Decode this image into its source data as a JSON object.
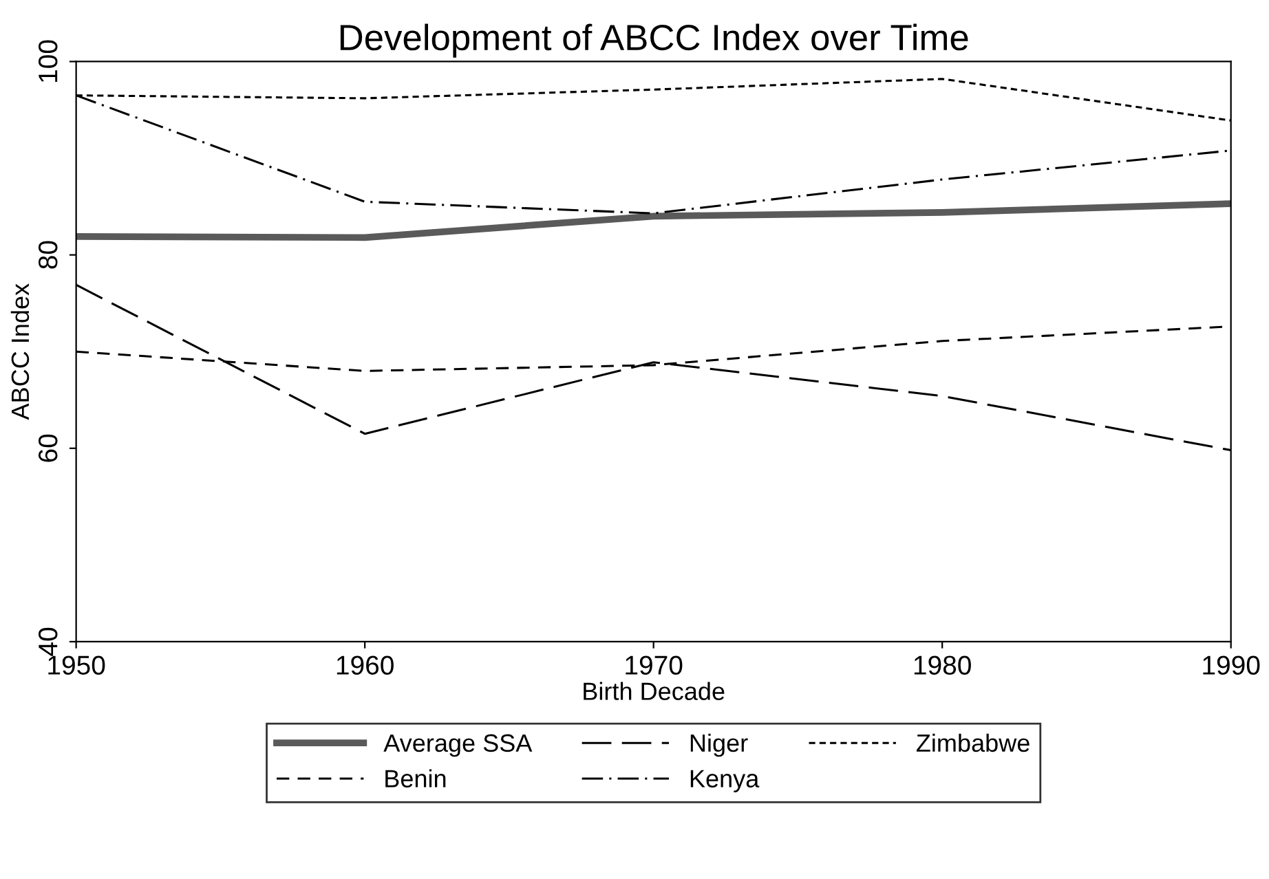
{
  "chart_data": {
    "type": "line",
    "title": "Development of ABCC Index over Time",
    "xlabel": "Birth Decade",
    "ylabel": "ABCC Index",
    "x": [
      1950,
      1960,
      1970,
      1980,
      1990
    ],
    "xlim": [
      1950,
      1990
    ],
    "xticks": [
      1950,
      1960,
      1970,
      1980,
      1990
    ],
    "ylim": [
      40,
      100
    ],
    "yticks": [
      40,
      60,
      80,
      100
    ],
    "grid": false,
    "legend": "bottom",
    "marker": "none",
    "series": [
      {
        "name": "Average SSA",
        "color": "#5a5a5a",
        "line_style": "solid",
        "values": [
          81.9,
          81.8,
          84.0,
          84.4,
          85.3
        ]
      },
      {
        "name": "Benin",
        "color": "#000000",
        "line_style": "dashed",
        "values": [
          70.0,
          68.0,
          68.6,
          71.1,
          72.6
        ]
      },
      {
        "name": "Niger",
        "color": "#000000",
        "line_style": "longdash",
        "values": [
          76.9,
          61.5,
          68.9,
          65.4,
          59.8
        ]
      },
      {
        "name": "Kenya",
        "color": "#000000",
        "line_style": "dashdot",
        "values": [
          96.5,
          85.5,
          84.3,
          87.8,
          90.8
        ]
      },
      {
        "name": "Zimbabwe",
        "color": "#000000",
        "line_style": "dotted",
        "values": [
          96.5,
          96.2,
          97.1,
          98.2,
          93.9
        ]
      }
    ]
  }
}
